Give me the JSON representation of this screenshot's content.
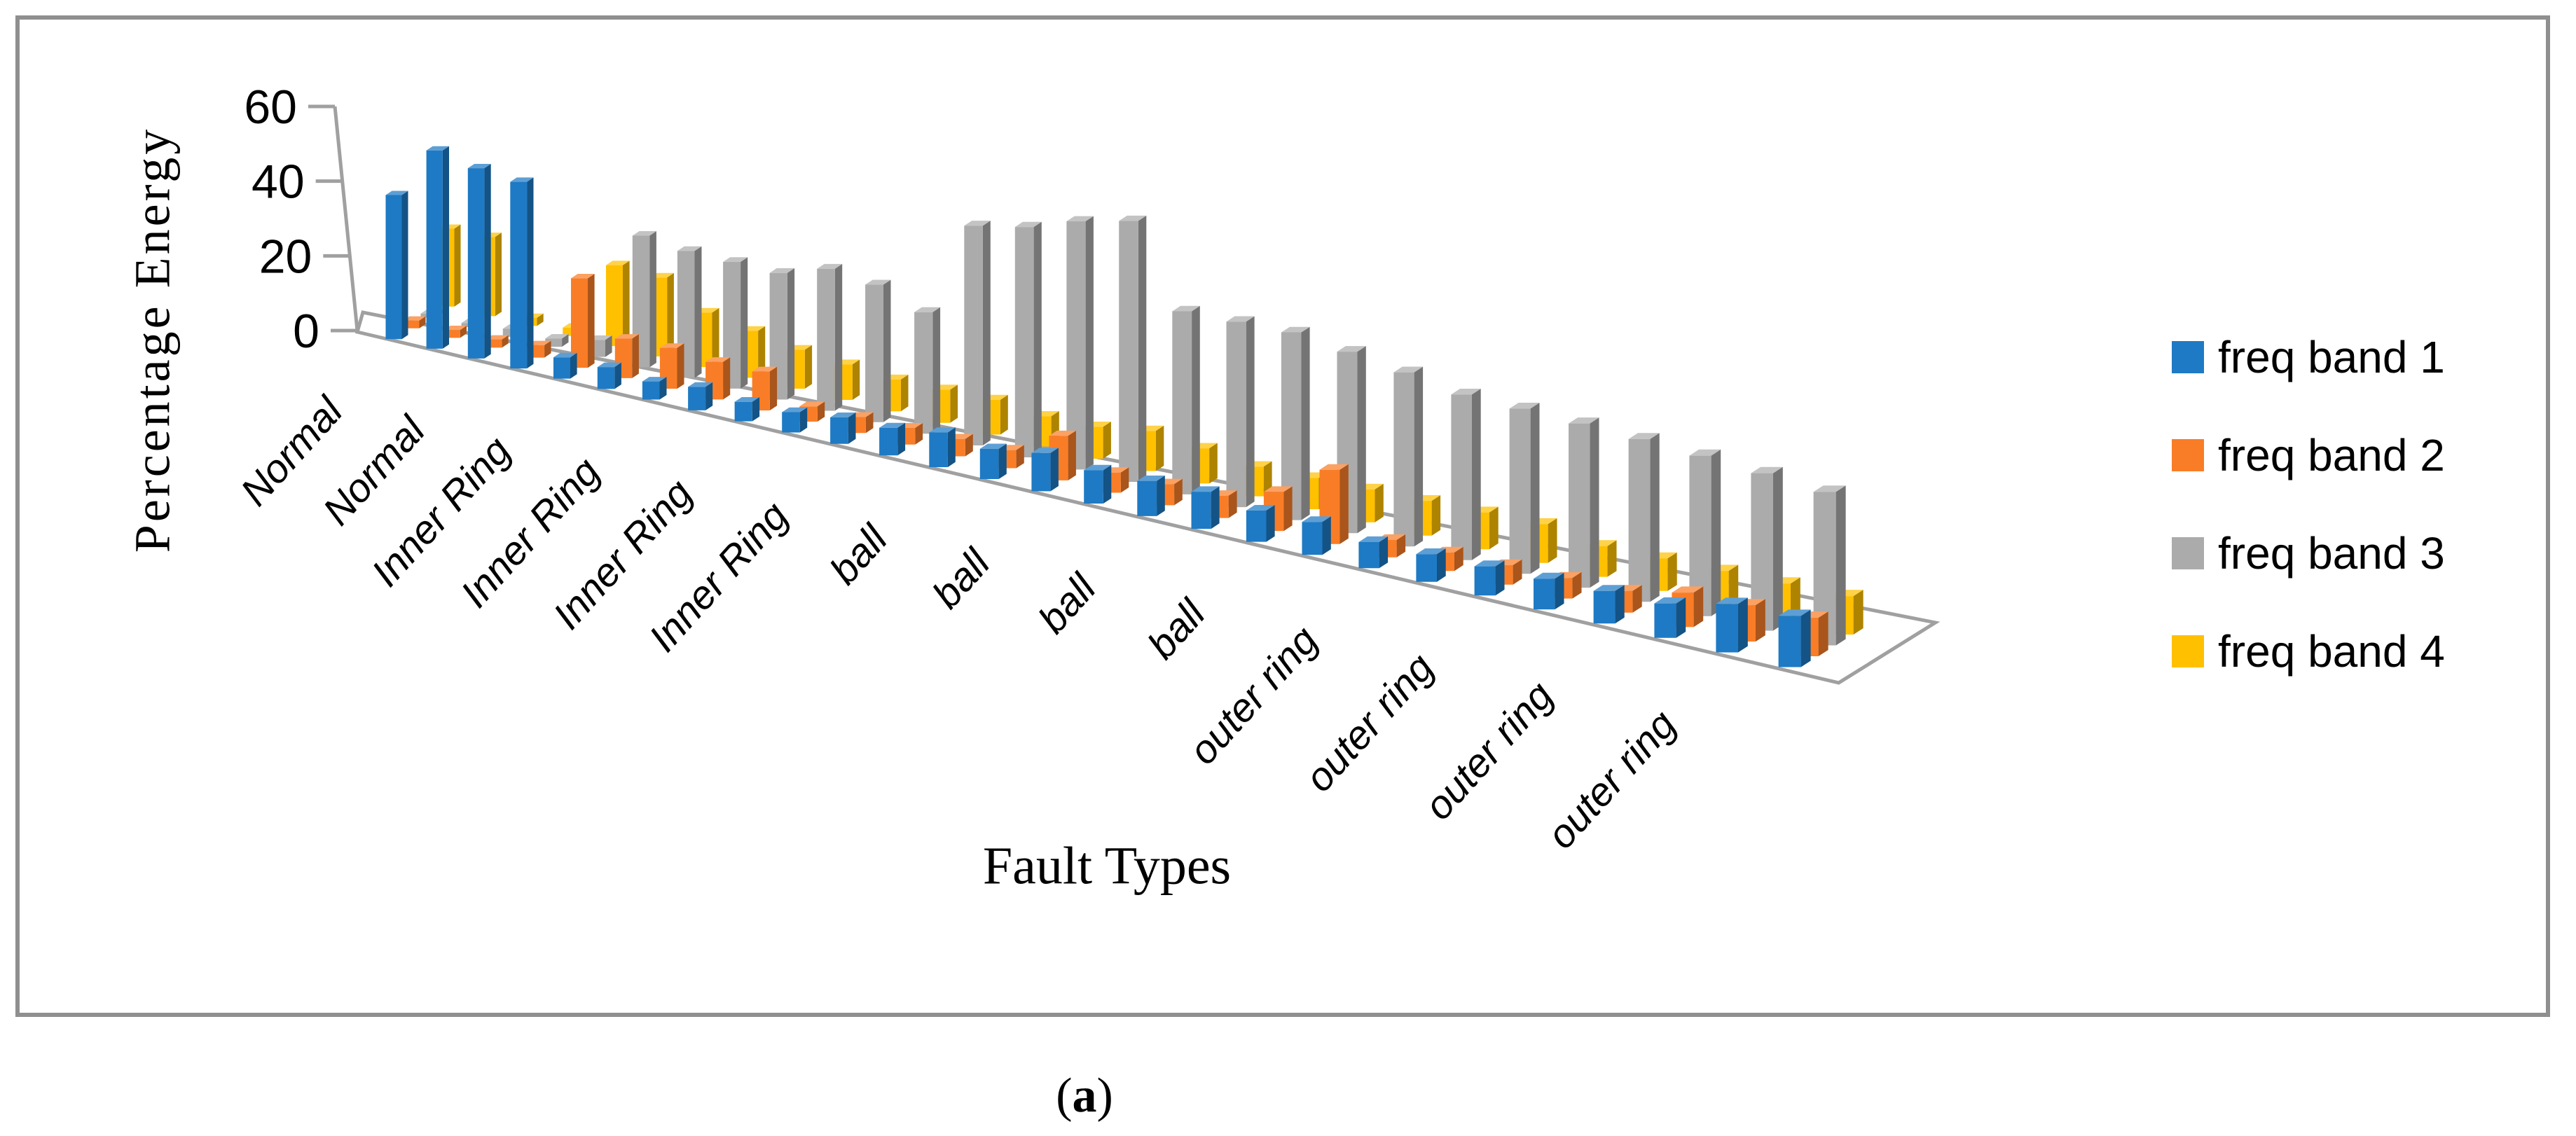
{
  "figure": {
    "caption": {
      "open": "(",
      "letter": "a",
      "close": ")"
    },
    "border_color": "#8f8f8f"
  },
  "chart": {
    "y_axis_title": "Percentage Energy",
    "x_axis_title": "Fault Types",
    "axis_line_color": "#a0a0a0",
    "text_color": "#000000"
  },
  "chart_data": {
    "type": "bar",
    "subtype": "3d-perspective-clustered-column",
    "title": "",
    "xlabel": "Fault Types",
    "ylabel": "Percentage Energy",
    "ylim": [
      0,
      60
    ],
    "yticks": [
      0,
      20,
      40,
      60
    ],
    "grid": false,
    "legend_position": "right",
    "categories": [
      "Normal",
      "Normal",
      "Normal",
      "Normal",
      "Inner Ring",
      "Inner Ring",
      "Inner Ring",
      "Inner Ring",
      "Inner Ring",
      "Inner Ring",
      "Inner Ring",
      "Inner Ring",
      "ball",
      "ball",
      "ball",
      "ball",
      "ball",
      "ball",
      "ball",
      "ball",
      "outer ring",
      "outer ring",
      "outer ring",
      "outer ring",
      "outer ring",
      "outer ring",
      "outer ring",
      "outer ring"
    ],
    "x_tick_labels_shown": [
      "Normal",
      "Normal",
      "Inner Ring",
      "Inner Ring",
      "Inner Ring",
      "Inner Ring",
      "ball",
      "ball",
      "ball",
      "ball",
      "outer ring",
      "outer ring",
      "outer ring",
      "outer ring"
    ],
    "series": [
      {
        "name": "freq band 1",
        "color": "#1E7AC4",
        "values": [
          37,
          50,
          47,
          45,
          5,
          5,
          4,
          5,
          4,
          4,
          5,
          5,
          6,
          5,
          6,
          5,
          5,
          5,
          4,
          4,
          3,
          3,
          3,
          3,
          3,
          3,
          4,
          4
        ]
      },
      {
        "name": "freq band 2",
        "color": "#F97D27",
        "values": [
          2,
          2,
          2,
          3,
          21,
          9,
          9,
          8,
          8,
          3,
          3,
          3,
          3,
          3,
          7,
          3,
          3,
          3,
          5,
          9,
          2,
          2,
          2,
          2,
          2,
          3,
          3,
          3
        ]
      },
      {
        "name": "freq band 3",
        "color": "#ABABAB",
        "values": [
          1,
          1,
          2,
          2,
          4,
          30,
          28,
          27,
          26,
          28,
          26,
          22,
          38,
          38,
          39,
          39,
          26,
          25,
          24,
          22,
          20,
          18,
          17,
          16,
          15,
          14,
          13,
          12
        ]
      },
      {
        "name": "freq band 4",
        "color": "#FFC000",
        "values": [
          20,
          20,
          2,
          2,
          19,
          18,
          12,
          10,
          8,
          7,
          6,
          6,
          6,
          5,
          5,
          6,
          5,
          4,
          4,
          4,
          4,
          4,
          4,
          3,
          3,
          3,
          3,
          3
        ]
      }
    ]
  }
}
